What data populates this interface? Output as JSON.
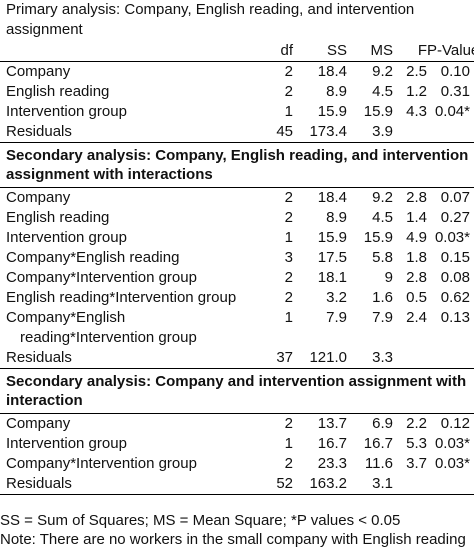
{
  "caption": "Primary analysis: Company, English reading, and intervention assignment",
  "columns": [
    "df",
    "SS",
    "MS",
    "F",
    "P-Value"
  ],
  "sections": [
    {
      "title": "",
      "rows": [
        {
          "label": "Company",
          "df": "2",
          "ss": "18.4",
          "ms": "9.2",
          "f": "2.5",
          "p": "0.10"
        },
        {
          "label": "English reading",
          "df": "2",
          "ss": "8.9",
          "ms": "4.5",
          "f": "1.2",
          "p": "0.31"
        },
        {
          "label": "Intervention group",
          "df": "1",
          "ss": "15.9",
          "ms": "15.9",
          "f": "4.3",
          "p": "0.04*"
        },
        {
          "label": "Residuals",
          "df": "45",
          "ss": "173.4",
          "ms": "3.9",
          "f": "",
          "p": ""
        }
      ]
    },
    {
      "title": "Secondary analysis: Company, English reading, and intervention assignment with interactions",
      "rows": [
        {
          "label": "Company",
          "df": "2",
          "ss": "18.4",
          "ms": "9.2",
          "f": "2.8",
          "p": "0.07"
        },
        {
          "label": "English reading",
          "df": "2",
          "ss": "8.9",
          "ms": "4.5",
          "f": "1.4",
          "p": "0.27"
        },
        {
          "label": "Intervention group",
          "df": "1",
          "ss": "15.9",
          "ms": "15.9",
          "f": "4.9",
          "p": "0.03*"
        },
        {
          "label": "Company*English reading",
          "df": "3",
          "ss": "17.5",
          "ms": "5.8",
          "f": "1.8",
          "p": "0.15"
        },
        {
          "label": "Company*Intervention group",
          "df": "2",
          "ss": "18.1",
          "ms": "9",
          "f": "2.8",
          "p": "0.08"
        },
        {
          "label": "English reading*Intervention group",
          "df": "2",
          "ss": "3.2",
          "ms": "1.6",
          "f": "0.5",
          "p": "0.62"
        },
        {
          "label": "Company*English",
          "label_cont": "reading*Intervention group",
          "df": "1",
          "ss": "7.9",
          "ms": "7.9",
          "f": "2.4",
          "p": "0.13"
        },
        {
          "label": "Residuals",
          "df": "37",
          "ss": "121.0",
          "ms": "3.3",
          "f": "",
          "p": ""
        }
      ]
    },
    {
      "title": "Secondary analysis: Company and intervention assignment with interaction",
      "rows": [
        {
          "label": "Company",
          "df": "2",
          "ss": "13.7",
          "ms": "6.9",
          "f": "2.2",
          "p": "0.12"
        },
        {
          "label": "Intervention group",
          "df": "1",
          "ss": "16.7",
          "ms": "16.7",
          "f": "5.3",
          "p": "0.03*"
        },
        {
          "label": "Company*Intervention group",
          "df": "2",
          "ss": "23.3",
          "ms": "11.6",
          "f": "3.7",
          "p": "0.03*"
        },
        {
          "label": "Residuals",
          "df": "52",
          "ss": "163.2",
          "ms": "3.1",
          "f": "",
          "p": ""
        }
      ]
    }
  ],
  "footnotes": [
    "SS = Sum of Squares; MS = Mean Square; *P values < 0.05",
    "Note: There are no workers in the small company with English reading"
  ]
}
